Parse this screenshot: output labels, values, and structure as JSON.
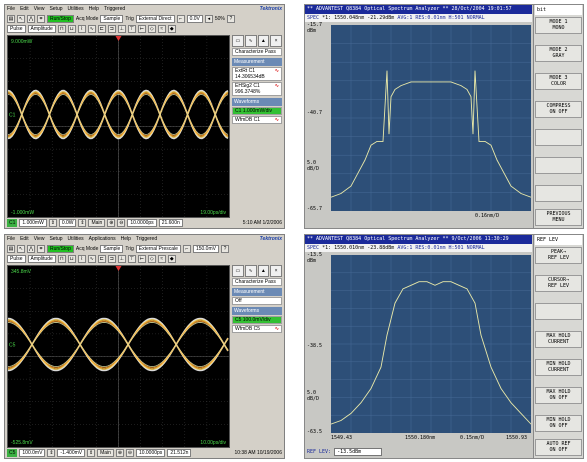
{
  "scope_top": {
    "menu": [
      "File",
      "Edit",
      "View",
      "Setup",
      "Utilities",
      "Help",
      "Triggered"
    ],
    "brand": "Tektronix",
    "toolbar1": {
      "run_stop": "Run/Stop",
      "acq_mode_label": "Acq Mode",
      "acq_mode_value": "Sample",
      "trig_label": "Trig",
      "trig_value": "External Direct",
      "level_value": "0.0V",
      "zoom": "50%"
    },
    "toolbar2": {
      "mode": "Pulse",
      "measure": "Amplitude"
    },
    "sidebar": {
      "sect1": "Measurement",
      "meas1_title": "ExtRt C1",
      "meas1_value": "14.306534dB",
      "meas2_title": "EHSig2 C1",
      "meas2_value": "996.3748%",
      "sect2": "Waveforms",
      "wf1": "C1 1.000mW/div",
      "wf2": "WfmDB C1",
      "char_pass": "Characterize Pass"
    },
    "bottom": {
      "ch": "C1",
      "scale": "1.000mW",
      "offset": "0.0W",
      "main": "Main",
      "timebase": "10.0000ps",
      "position": "21.600n",
      "clock": "5:10 AM 1/2/2006"
    },
    "screen_labels": {
      "top": "9.000mW",
      "bottom": "-1.000mW",
      "right": "19.00ps/div",
      "ch_marker": "C1"
    }
  },
  "scope_bottom": {
    "menu": [
      "File",
      "Edit",
      "View",
      "Setup",
      "Utilities",
      "Applications",
      "Help",
      "Triggered"
    ],
    "brand": "Tektronix",
    "toolbar1": {
      "run_stop": "Run/Stop",
      "acq_mode_label": "Acq Mode",
      "acq_mode_value": "Sample",
      "trig_label": "Trig",
      "trig_value": "External Prescale",
      "level_value": "150.0mV",
      "zoom": ""
    },
    "toolbar2": {
      "mode": "Pulse",
      "measure": "Amplitude"
    },
    "sidebar": {
      "sect1": "Measurement",
      "meas1_title": "Off",
      "meas1_value": "",
      "meas2_title": "",
      "meas2_value": "",
      "sect2": "Waveforms",
      "wf1": "C5 100.0mV/div",
      "wf2": "WfmDB C5",
      "char_pass": "Characterize Pass"
    },
    "bottom": {
      "ch": "C5",
      "scale": "100.0mV",
      "offset": "-1.400mV",
      "main": "Main",
      "timebase": "10.0000ps",
      "position": "21.512n",
      "clock": "10:38 AM 10/19/2006"
    },
    "screen_labels": {
      "top": "345.8mV",
      "bottom": "-525.8mV",
      "right": "10.00ps/div",
      "ch_marker": "C5"
    }
  },
  "osa_top": {
    "header": "** ADVANTEST Q8384 Optical Spectrum Analyzer **  28/Oct/2004 19:01:57",
    "subheader_a": "SPEC",
    "subheader_b": "*1: 1550.048nm -21.29dBm",
    "subheader_c": "AVG:1  RES:0.01nm H:501    NORMAL",
    "y_top": "-15.7",
    "y_top_unit": "dBm",
    "y_mid": "-40.7",
    "y_div": "5.0",
    "y_div_unit": "dB/D",
    "y_bottom": "-65.7",
    "x_center": "0.16nm/D",
    "side_title": "bit",
    "side_buttons": [
      "MODE 1\nMONO",
      "MODE 2\nGRAY",
      "MODE 3\nCOLOR",
      "COMPRESS\nON  OFF",
      "",
      "",
      "",
      "PREVIOUS\nMENU"
    ],
    "chart_data": {
      "type": "line",
      "title": "",
      "xlabel": "",
      "ylabel": "dBm",
      "ylim": [
        -65.7,
        -15.7
      ],
      "x": [
        0,
        5,
        10,
        14,
        17,
        20,
        23,
        26,
        28,
        29,
        30,
        32,
        35,
        40,
        45,
        50,
        55,
        60,
        65,
        68,
        70,
        71,
        72,
        74,
        77,
        80,
        83,
        86,
        90,
        95,
        100
      ],
      "values": [
        -62,
        -61,
        -59,
        -55,
        -52,
        -48,
        -47,
        -47,
        -28,
        -45,
        -35,
        -33,
        -32,
        -31,
        -31,
        -31,
        -31,
        -31,
        -32,
        -33,
        -35,
        -45,
        -28,
        -47,
        -47,
        -48,
        -52,
        -55,
        -59,
        -61,
        -62
      ]
    }
  },
  "osa_bottom": {
    "header": "** ADVANTEST Q8384 Optical Spectrum Analyzer **  9/Oct/2006 11:30:29",
    "subheader_a": "SPEC",
    "subheader_b": "*1: 1550.010nm -23.88dBm",
    "subheader_c": "AVG:1  RES:0.01nm H:501    NORMAL",
    "y_top": "-13.5",
    "y_top_unit": "dBm",
    "y_mid": "-38.5",
    "y_div": "5.0",
    "y_div_unit": "dB/D",
    "y_bottom": "-63.5",
    "x_left": "1549.43",
    "x_center": "1550.180nm",
    "x_span": "0.15nm/D",
    "x_right": "1550.93",
    "ref_lev_label": "REF LEV:",
    "ref_lev_value": "-13.5dBm",
    "side_title": "REF LEV",
    "side_buttons": [
      "PEAK→\nREF LEV",
      "CURSOR→\nREF LEV",
      "",
      "MAX HOLD\nCURRENT",
      "MIN HOLD\nCURRENT",
      "MAX HOLD\nON  OFF",
      "MIN HOLD\nON  OFF",
      "AUTO REF\nON  OFF"
    ],
    "chart_data": {
      "type": "line",
      "title": "",
      "xlabel": "",
      "ylabel": "dBm",
      "ylim": [
        -63.5,
        -13.5
      ],
      "x": [
        0,
        5,
        10,
        15,
        20,
        25,
        28,
        32,
        36,
        40,
        44,
        48,
        52,
        56,
        60,
        64,
        68,
        72,
        75,
        80,
        85,
        90,
        95,
        100
      ],
      "values": [
        -61,
        -60,
        -58,
        -55,
        -51,
        -45,
        -36,
        -27,
        -23,
        -22,
        -21,
        -21,
        -22,
        -21,
        -21,
        -22,
        -23,
        -27,
        -36,
        -45,
        -51,
        -55,
        -58,
        -61
      ]
    }
  }
}
